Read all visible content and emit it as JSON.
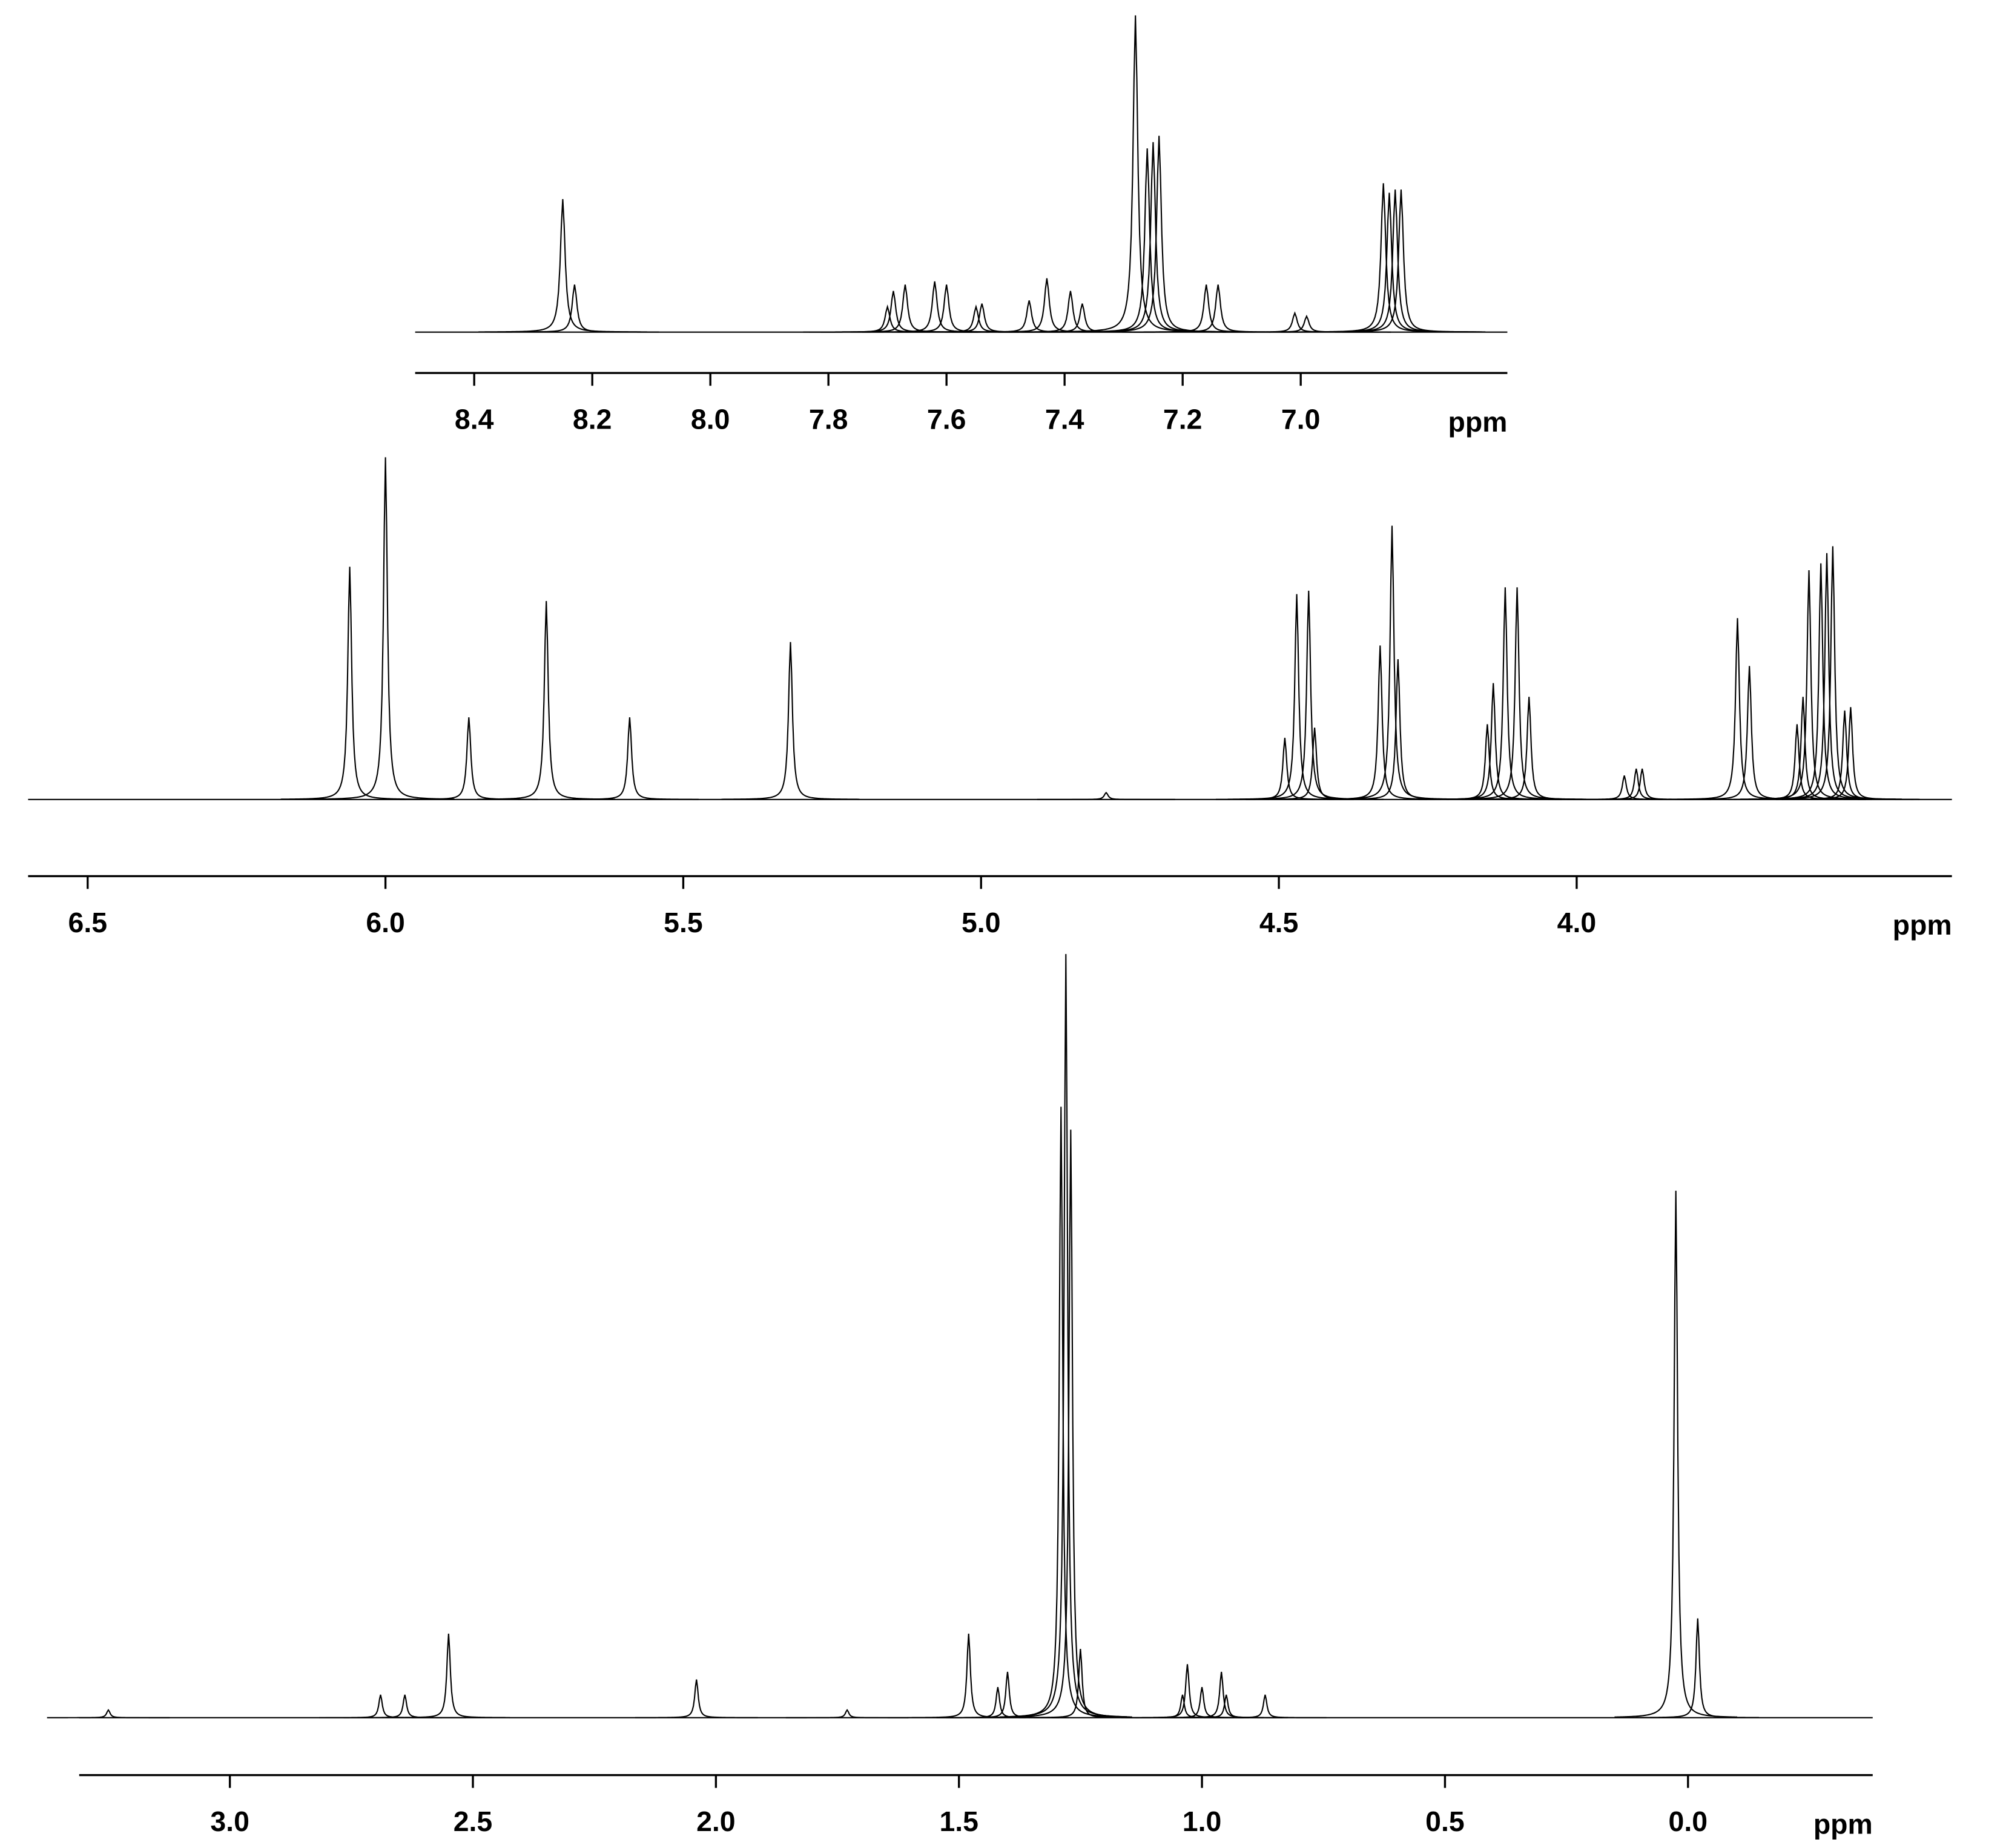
{
  "chart_data": [
    {
      "type": "spectrum",
      "xlabel": "ppm",
      "xlim": [
        8.5,
        6.65
      ],
      "xticks": [
        8.4,
        8.2,
        {
          "value": 8,
          "label": "8.0"
        },
        7.8,
        7.6,
        7.4,
        7.2,
        {
          "value": 7,
          "label": "7.0"
        }
      ],
      "x": [
        8.25,
        8.23,
        7.7,
        7.69,
        7.67,
        7.62,
        7.6,
        7.55,
        7.54,
        7.46,
        7.43,
        7.39,
        7.37,
        7.28,
        7.26,
        7.25,
        7.24,
        7.16,
        7.14,
        7.01,
        6.99,
        6.86,
        6.85,
        6.84,
        6.83
      ],
      "values": [
        42,
        15,
        8,
        13,
        15,
        16,
        15,
        8,
        9,
        10,
        17,
        13,
        9,
        100,
        58,
        60,
        62,
        15,
        15,
        6,
        5,
        47,
        44,
        45,
        45
      ]
    },
    {
      "type": "spectrum",
      "xlabel": "ppm",
      "xlim": [
        6.6,
        3.37
      ],
      "xticks": [
        6.5,
        {
          "value": 6,
          "label": "6.0"
        },
        5.5,
        {
          "value": 5,
          "label": "5.0"
        },
        4.5,
        {
          "value": 4,
          "label": "4.0"
        }
      ],
      "x": [
        6.06,
        6.0,
        5.86,
        5.73,
        5.59,
        5.32,
        4.79,
        4.49,
        4.47,
        4.45,
        4.44,
        4.33,
        4.31,
        4.3,
        4.15,
        4.14,
        4.12,
        4.1,
        4.08,
        3.92,
        3.9,
        3.89,
        3.73,
        3.71,
        3.63,
        3.62,
        3.61,
        3.59,
        3.58,
        3.57,
        3.55,
        3.54
      ],
      "values": [
        68,
        100,
        24,
        58,
        24,
        46,
        2,
        18,
        60,
        61,
        21,
        45,
        80,
        41,
        22,
        34,
        62,
        62,
        30,
        7,
        9,
        9,
        53,
        39,
        22,
        30,
        67,
        69,
        72,
        74,
        26,
        27
      ]
    },
    {
      "type": "spectrum",
      "xlabel": "ppm",
      "xlim": [
        3.31,
        -0.38
      ],
      "xticks": [
        {
          "value": 3,
          "label": "3.0"
        },
        2.5,
        {
          "value": 2,
          "label": "2.0"
        },
        1.5,
        {
          "value": 1,
          "label": "1.0"
        },
        0.5,
        {
          "value": 0,
          "label": "0.0"
        }
      ],
      "x": [
        3.25,
        2.69,
        2.64,
        2.55,
        2.04,
        1.73,
        1.48,
        1.42,
        1.4,
        1.29,
        1.28,
        1.27,
        1.25,
        1.04,
        1.03,
        1.0,
        0.96,
        0.95,
        0.87,
        0.025,
        -0.02
      ],
      "values": [
        1,
        3,
        3,
        11,
        5,
        1,
        11,
        4,
        6,
        80,
        100,
        77,
        9,
        3,
        7,
        4,
        6,
        3,
        3,
        69,
        13
      ]
    }
  ]
}
